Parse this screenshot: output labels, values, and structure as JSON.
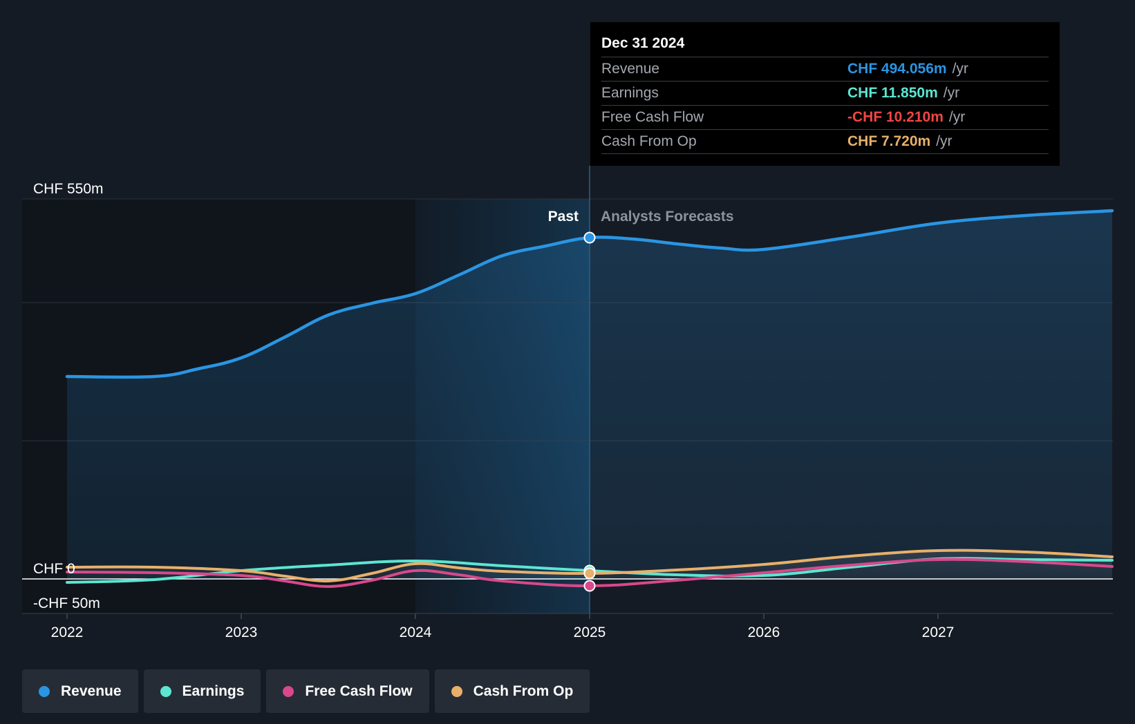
{
  "colors": {
    "revenue": "#2a95e3",
    "earnings": "#5ce6d2",
    "free_cash_flow": "#d9488b",
    "cash_from_op": "#e8b06a",
    "negative": "#f04545",
    "background": "#151b24"
  },
  "chart_data": {
    "type": "line",
    "y_axis": {
      "ylim": [
        -50,
        550
      ],
      "tick_labels": [
        {
          "value": 550,
          "label": "CHF 550m"
        },
        {
          "value": 0,
          "label": "CHF 0"
        },
        {
          "value": -50,
          "label": "-CHF 50m"
        }
      ],
      "gridlines": [
        550,
        400,
        200,
        0,
        -50
      ]
    },
    "x_axis": {
      "xlim": [
        2021.75,
        2027.99
      ],
      "ticks": [
        {
          "value": 2022,
          "label": "2022"
        },
        {
          "value": 2023,
          "label": "2023"
        },
        {
          "value": 2024,
          "label": "2024"
        },
        {
          "value": 2025,
          "label": "2025"
        },
        {
          "value": 2026,
          "label": "2026"
        },
        {
          "value": 2027,
          "label": "2027"
        }
      ]
    },
    "divider": {
      "x": 2025,
      "past_label": "Past",
      "forecast_label": "Analysts Forecasts"
    },
    "highlight_start_x": 2024,
    "series": [
      {
        "key": "revenue",
        "name": "Revenue",
        "fill": true,
        "x": [
          2022,
          2022.5,
          2022.75,
          2023,
          2023.25,
          2023.5,
          2023.75,
          2024,
          2024.25,
          2024.5,
          2024.75,
          2025,
          2025.25,
          2025.5,
          2025.75,
          2026,
          2026.5,
          2027,
          2027.5,
          2028
        ],
        "y": [
          293,
          293,
          304,
          320,
          350,
          382,
          399,
          413,
          440,
          468,
          482,
          494,
          492,
          485,
          479,
          477,
          495,
          515,
          526,
          533
        ]
      },
      {
        "key": "earnings",
        "name": "Earnings",
        "fill": false,
        "x": [
          2022,
          2022.5,
          2023,
          2023.5,
          2024,
          2024.5,
          2025,
          2025.5,
          2026,
          2026.5,
          2027,
          2027.5,
          2028
        ],
        "y": [
          -5,
          -1,
          12,
          20,
          26,
          19,
          12,
          6,
          5,
          17,
          29,
          28,
          27
        ]
      },
      {
        "key": "free_cash_flow",
        "name": "Free Cash Flow",
        "fill": false,
        "x": [
          2022,
          2022.5,
          2023,
          2023.25,
          2023.5,
          2023.75,
          2024,
          2024.25,
          2024.5,
          2025,
          2025.5,
          2026,
          2026.5,
          2027,
          2027.5,
          2028
        ],
        "y": [
          10,
          9,
          5,
          -3,
          -11,
          -2,
          12,
          6,
          -3,
          -10,
          -2,
          9,
          20,
          28,
          25,
          18
        ]
      },
      {
        "key": "cash_from_op",
        "name": "Cash From Op",
        "fill": false,
        "x": [
          2022,
          2022.5,
          2023,
          2023.25,
          2023.5,
          2023.75,
          2024,
          2024.25,
          2024.5,
          2025,
          2025.5,
          2026,
          2026.5,
          2027,
          2027.5,
          2028
        ],
        "y": [
          17,
          17,
          12,
          4,
          -3,
          8,
          22,
          16,
          11,
          8,
          13,
          21,
          33,
          41,
          39,
          32
        ]
      }
    ],
    "tooltip": {
      "date": "Dec 31 2024",
      "rows": [
        {
          "key": "revenue",
          "label": "Revenue",
          "value": "CHF 494.056m",
          "unit": "/yr",
          "value_color": "#2a95e3"
        },
        {
          "key": "earnings",
          "label": "Earnings",
          "value": "CHF 11.850m",
          "unit": "/yr",
          "value_color": "#5ce6d2"
        },
        {
          "key": "free_cash_flow",
          "label": "Free Cash Flow",
          "value": "-CHF 10.210m",
          "unit": "/yr",
          "value_color": "#f04545"
        },
        {
          "key": "cash_from_op",
          "label": "Cash From Op",
          "value": "CHF 7.720m",
          "unit": "/yr",
          "value_color": "#e8b06a"
        }
      ]
    }
  },
  "legend": {
    "items": [
      {
        "key": "revenue",
        "label": "Revenue",
        "color": "#2a95e3"
      },
      {
        "key": "earnings",
        "label": "Earnings",
        "color": "#5ce6d2"
      },
      {
        "key": "free_cash_flow",
        "label": "Free Cash Flow",
        "color": "#d9488b"
      },
      {
        "key": "cash_from_op",
        "label": "Cash From Op",
        "color": "#e8b06a"
      }
    ]
  }
}
